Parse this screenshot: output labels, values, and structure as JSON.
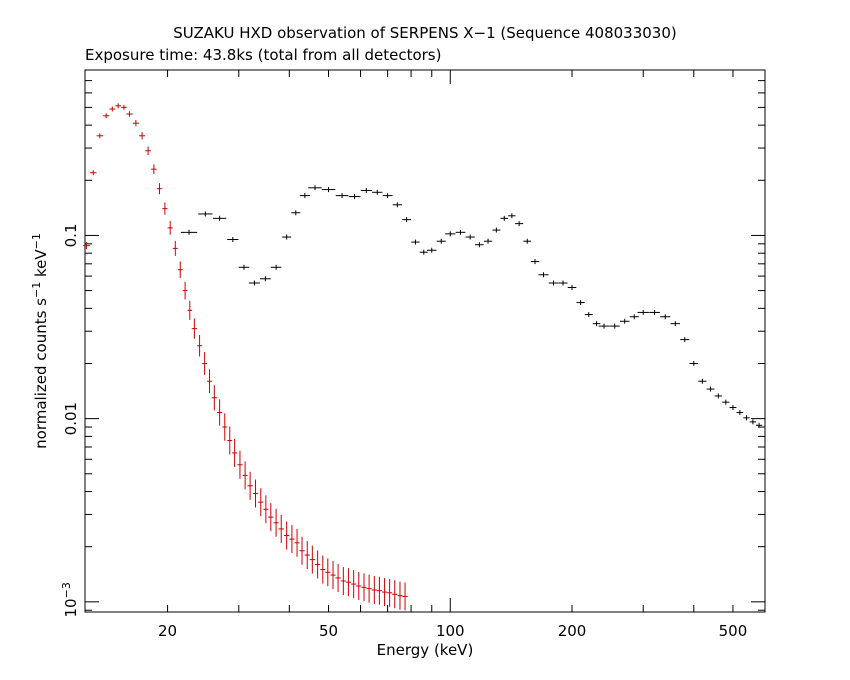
{
  "chart_data": {
    "type": "scatter",
    "title": "SUZAKU HXD observation of SERPENS X−1 (Sequence 408033030)",
    "subtitle": "Exposure time: 43.8ks (total from all detectors)",
    "xlabel": "Energy (keV)",
    "ylabel_main": "normalized counts s",
    "ylabel_exp1": "−1",
    "ylabel_unit": " keV",
    "ylabel_exp2": "−1",
    "x_scale": "log",
    "y_scale": "log",
    "xlim": [
      12.5,
      600
    ],
    "ylim": [
      0.00088,
      0.8
    ],
    "grid": false,
    "x_ticks": [
      {
        "value": 20,
        "label": "20"
      },
      {
        "value": 50,
        "label": "50"
      },
      {
        "value": 100,
        "label": "100"
      },
      {
        "value": 200,
        "label": "200"
      },
      {
        "value": 500,
        "label": "500"
      }
    ],
    "y_ticks": [
      {
        "value": 0.1,
        "label": "0.1"
      },
      {
        "value": 0.01,
        "label": "0.01"
      }
    ],
    "y_tick_power": {
      "value": 0.001,
      "base": "10",
      "exponent": "−3"
    },
    "series": [
      {
        "color": "#000000",
        "points": [
          [
            22.6,
            0.104
          ],
          [
            24.8,
            0.131
          ],
          [
            26.9,
            0.124
          ],
          [
            29,
            0.095
          ],
          [
            30.9,
            0.067
          ],
          [
            32.8,
            0.055
          ],
          [
            34.9,
            0.058
          ],
          [
            37.1,
            0.067
          ],
          [
            39.4,
            0.098
          ],
          [
            41.5,
            0.133
          ],
          [
            43.7,
            0.165
          ],
          [
            46.3,
            0.182
          ],
          [
            50,
            0.178
          ],
          [
            54,
            0.165
          ],
          [
            58,
            0.163
          ],
          [
            62,
            0.176
          ],
          [
            66,
            0.172
          ],
          [
            70,
            0.165
          ],
          [
            74,
            0.147
          ],
          [
            78,
            0.122
          ],
          [
            82,
            0.092
          ],
          [
            86,
            0.081
          ],
          [
            90,
            0.083
          ],
          [
            95,
            0.093
          ],
          [
            100,
            0.102
          ],
          [
            106,
            0.104
          ],
          [
            112,
            0.098
          ],
          [
            118,
            0.089
          ],
          [
            124,
            0.093
          ],
          [
            130,
            0.107
          ],
          [
            136,
            0.124
          ],
          [
            142,
            0.128
          ],
          [
            148,
            0.116
          ],
          [
            155,
            0.093
          ],
          [
            162,
            0.072
          ],
          [
            170,
            0.061
          ],
          [
            180,
            0.055
          ],
          [
            190,
            0.055
          ],
          [
            200,
            0.052
          ],
          [
            210,
            0.043
          ],
          [
            220,
            0.037
          ],
          [
            230,
            0.033
          ],
          [
            240,
            0.032
          ],
          [
            255,
            0.032
          ],
          [
            270,
            0.034
          ],
          [
            285,
            0.036
          ],
          [
            300,
            0.038
          ],
          [
            320,
            0.038
          ],
          [
            340,
            0.036
          ],
          [
            360,
            0.033
          ],
          [
            380,
            0.027
          ],
          [
            400,
            0.02
          ],
          [
            420,
            0.016
          ],
          [
            440,
            0.0145
          ],
          [
            460,
            0.0133
          ],
          [
            480,
            0.0123
          ],
          [
            500,
            0.0115
          ],
          [
            520,
            0.0108
          ],
          [
            540,
            0.0101
          ],
          [
            560,
            0.0096
          ],
          [
            580,
            0.0092
          ]
        ]
      },
      {
        "color": "#cc0000",
        "points": [
          [
            12.6,
            0.088
          ],
          [
            13.1,
            0.22
          ],
          [
            13.6,
            0.35
          ],
          [
            14.1,
            0.45
          ],
          [
            14.6,
            0.49
          ],
          [
            15.1,
            0.51
          ],
          [
            15.6,
            0.5
          ],
          [
            16.1,
            0.46
          ],
          [
            16.7,
            0.41
          ],
          [
            17.3,
            0.35
          ],
          [
            17.9,
            0.29
          ],
          [
            18.5,
            0.23
          ],
          [
            19.1,
            0.18
          ],
          [
            19.7,
            0.14
          ],
          [
            20.3,
            0.11
          ],
          [
            20.9,
            0.085
          ],
          [
            21.5,
            0.065
          ],
          [
            22.1,
            0.05
          ],
          [
            22.7,
            0.039
          ],
          [
            23.3,
            0.031
          ],
          [
            24,
            0.025
          ],
          [
            24.7,
            0.02
          ],
          [
            25.4,
            0.016
          ],
          [
            26.1,
            0.013
          ],
          [
            26.9,
            0.0108
          ],
          [
            27.7,
            0.009
          ],
          [
            28.5,
            0.0076
          ],
          [
            29.3,
            0.0065
          ],
          [
            30.2,
            0.0056
          ],
          [
            31.1,
            0.0049
          ],
          [
            32,
            0.0043
          ],
          [
            33,
            0.0039
          ],
          [
            34,
            0.0035
          ],
          [
            35,
            0.0032
          ],
          [
            36,
            0.0029
          ],
          [
            37.1,
            0.0027
          ],
          [
            38.2,
            0.0025
          ],
          [
            39.4,
            0.0023
          ],
          [
            40.6,
            0.0022
          ],
          [
            41.8,
            0.0021
          ],
          [
            43,
            0.0019
          ],
          [
            44.3,
            0.0018
          ],
          [
            45.6,
            0.0017
          ],
          [
            47,
            0.0016
          ],
          [
            48.4,
            0.0015
          ],
          [
            49.8,
            0.00145
          ],
          [
            51.3,
            0.0014
          ],
          [
            52.8,
            0.00135
          ],
          [
            54.4,
            0.0013
          ],
          [
            56,
            0.00128
          ],
          [
            57.7,
            0.00125
          ],
          [
            59.4,
            0.00122
          ],
          [
            61.2,
            0.0012
          ],
          [
            63,
            0.00118
          ],
          [
            64.9,
            0.00116
          ],
          [
            66.8,
            0.00115
          ],
          [
            68.8,
            0.00113
          ],
          [
            70.8,
            0.00112
          ],
          [
            72.9,
            0.0011
          ],
          [
            75.1,
            0.00108
          ],
          [
            77.3,
            0.00107
          ]
        ]
      }
    ]
  }
}
